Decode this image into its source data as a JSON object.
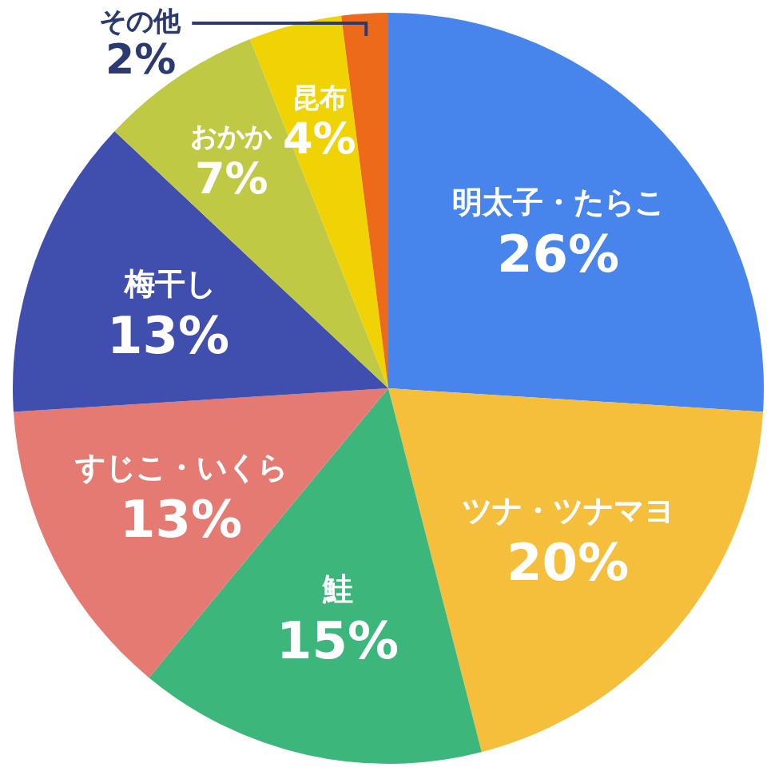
{
  "chart_data": {
    "type": "pie",
    "categories": [
      "明太子・たらこ",
      "ツナ・ツナマヨ",
      "鮭",
      "すじこ・いくら",
      "梅干し",
      "おかか",
      "昆布",
      "その他"
    ],
    "values": [
      26,
      20,
      15,
      13,
      13,
      7,
      4,
      2
    ],
    "value_labels": [
      "26%",
      "20%",
      "15%",
      "13%",
      "13%",
      "7%",
      "4%",
      "2%"
    ],
    "colors": [
      "#4785ec",
      "#f5bf3b",
      "#3db67c",
      "#e57a73",
      "#404fae",
      "#c0c944",
      "#efd304",
      "#ec6a1a"
    ]
  }
}
